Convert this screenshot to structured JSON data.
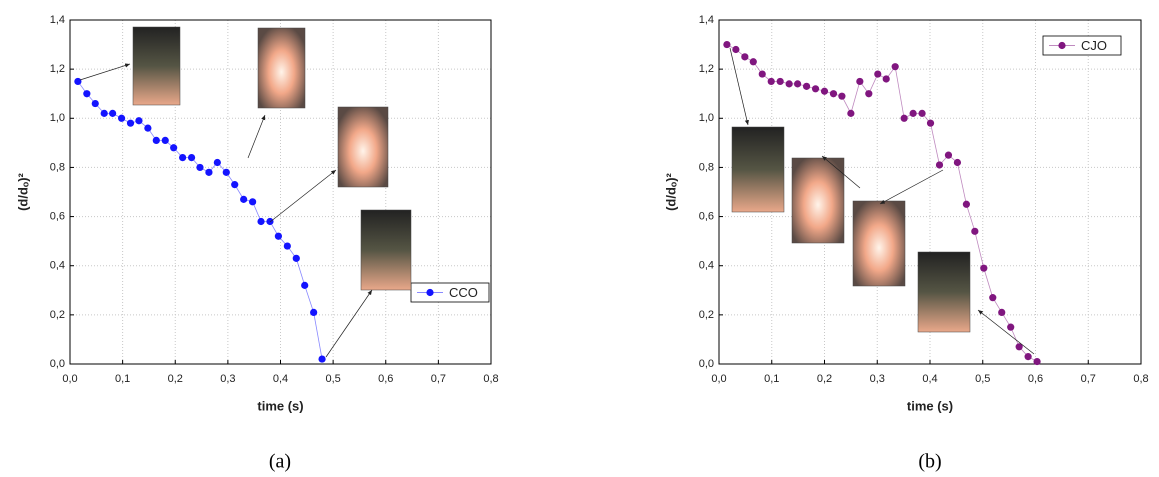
{
  "chart_data": [
    {
      "type": "line",
      "caption": "(a)",
      "xlabel": "time (s)",
      "ylabel": "(d/dₒ)²",
      "xlim": [
        0,
        0.8
      ],
      "ylim": [
        0,
        1.4
      ],
      "grid": true,
      "legend": "right",
      "xticks": [
        {
          "value": 0,
          "label": "0,0"
        },
        {
          "value": 0.1,
          "label": "0,1"
        },
        {
          "value": 0.2,
          "label": "0,2"
        },
        {
          "value": 0.3,
          "label": "0,3"
        },
        {
          "value": 0.4,
          "label": "0,4"
        },
        {
          "value": 0.5,
          "label": "0,5"
        },
        {
          "value": 0.6,
          "label": "0,6"
        },
        {
          "value": 0.7,
          "label": "0,7"
        },
        {
          "value": 0.8,
          "label": "0,8"
        }
      ],
      "yticks": [
        {
          "value": 0,
          "label": "0,0"
        },
        {
          "value": 0.2,
          "label": "0,2"
        },
        {
          "value": 0.4,
          "label": "0,4"
        },
        {
          "value": 0.6,
          "label": "0,6"
        },
        {
          "value": 0.8,
          "label": "0,8"
        },
        {
          "value": 1.0,
          "label": "1,0"
        },
        {
          "value": 1.2,
          "label": "1,2"
        },
        {
          "value": 1.4,
          "label": "1,4"
        }
      ],
      "series": [
        {
          "name": "CCO",
          "color": "#1414ff",
          "x": [
            0.015,
            0.032,
            0.048,
            0.065,
            0.081,
            0.098,
            0.115,
            0.131,
            0.148,
            0.164,
            0.181,
            0.197,
            0.214,
            0.231,
            0.247,
            0.264,
            0.28,
            0.297,
            0.313,
            0.33,
            0.347,
            0.363,
            0.38,
            0.396,
            0.413,
            0.43,
            0.446,
            0.463,
            0.479
          ],
          "values": [
            1.15,
            1.1,
            1.06,
            1.02,
            1.02,
            1.0,
            0.98,
            0.99,
            0.96,
            0.91,
            0.91,
            0.88,
            0.84,
            0.84,
            0.8,
            0.78,
            0.82,
            0.78,
            0.73,
            0.67,
            0.66,
            0.58,
            0.58,
            0.52,
            0.48,
            0.43,
            0.32,
            0.21,
            0.02
          ]
        }
      ]
    },
    {
      "type": "line",
      "caption": "(b)",
      "xlabel": "time (s)",
      "ylabel": "(d/dₒ)²",
      "xlim": [
        0,
        0.8
      ],
      "ylim": [
        0,
        1.4
      ],
      "grid": true,
      "legend": "upper right",
      "xticks": [
        {
          "value": 0,
          "label": "0,0"
        },
        {
          "value": 0.1,
          "label": "0,1"
        },
        {
          "value": 0.2,
          "label": "0,2"
        },
        {
          "value": 0.3,
          "label": "0,3"
        },
        {
          "value": 0.4,
          "label": "0,4"
        },
        {
          "value": 0.5,
          "label": "0,5"
        },
        {
          "value": 0.6,
          "label": "0,6"
        },
        {
          "value": 0.7,
          "label": "0,7"
        },
        {
          "value": 0.8,
          "label": "0,8"
        }
      ],
      "yticks": [
        {
          "value": 0,
          "label": "0,0"
        },
        {
          "value": 0.2,
          "label": "0,2"
        },
        {
          "value": 0.4,
          "label": "0,4"
        },
        {
          "value": 0.6,
          "label": "0,6"
        },
        {
          "value": 0.8,
          "label": "0,8"
        },
        {
          "value": 1.0,
          "label": "1,0"
        },
        {
          "value": 1.2,
          "label": "1,2"
        },
        {
          "value": 1.4,
          "label": "1,4"
        }
      ],
      "series": [
        {
          "name": "CJO",
          "color": "#80167f",
          "x": [
            0.015,
            0.032,
            0.049,
            0.065,
            0.082,
            0.099,
            0.116,
            0.133,
            0.149,
            0.166,
            0.183,
            0.2,
            0.217,
            0.233,
            0.25,
            0.267,
            0.284,
            0.301,
            0.317,
            0.334,
            0.351,
            0.368,
            0.385,
            0.401,
            0.418,
            0.435,
            0.452,
            0.469,
            0.485,
            0.502,
            0.519,
            0.536,
            0.553,
            0.569,
            0.586,
            0.603
          ],
          "values": [
            1.3,
            1.28,
            1.25,
            1.23,
            1.18,
            1.15,
            1.15,
            1.14,
            1.14,
            1.13,
            1.12,
            1.11,
            1.1,
            1.09,
            1.02,
            1.15,
            1.1,
            1.18,
            1.16,
            1.21,
            1.0,
            1.02,
            1.02,
            0.98,
            0.81,
            0.85,
            0.82,
            0.65,
            0.54,
            0.39,
            0.27,
            0.21,
            0.15,
            0.07,
            0.03,
            0.01
          ]
        }
      ]
    }
  ]
}
